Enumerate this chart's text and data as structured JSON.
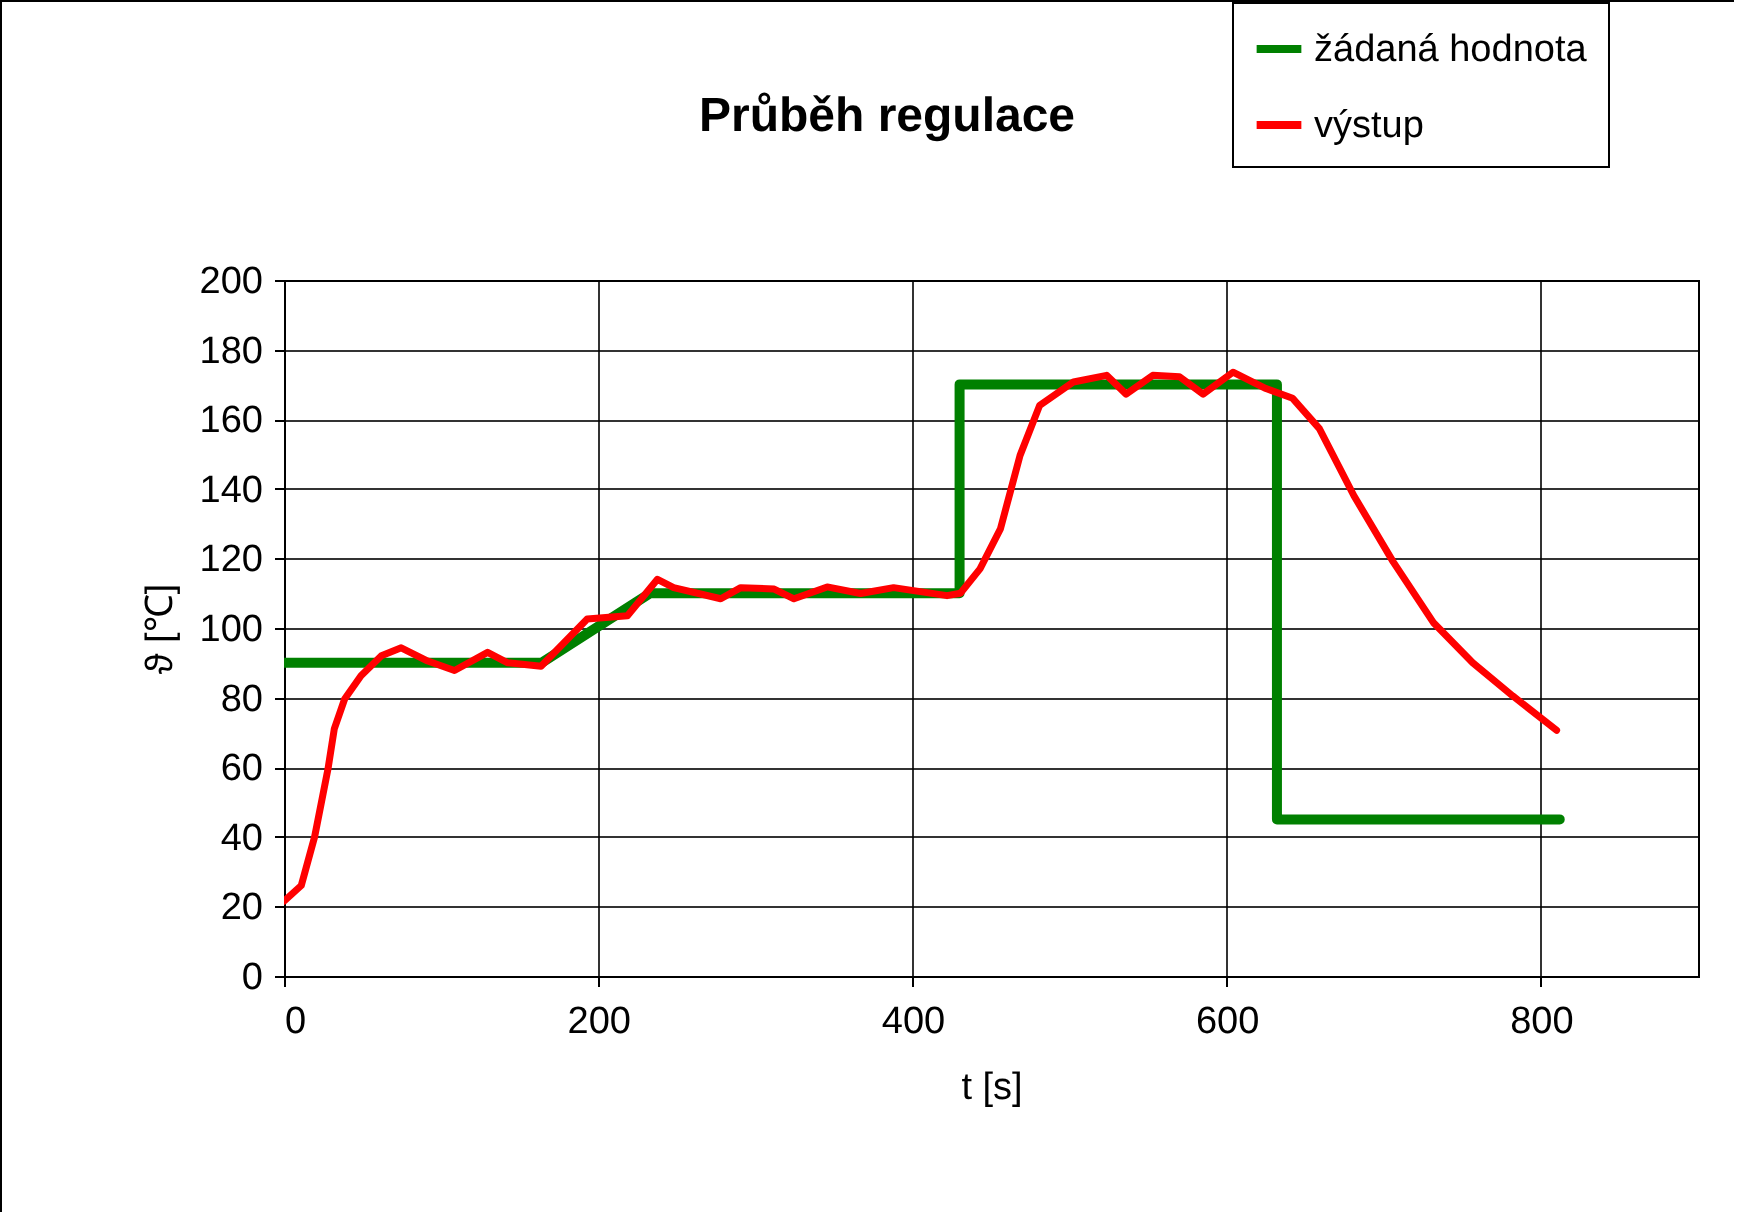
{
  "chart_data": {
    "type": "line",
    "title": "Průběh regulace",
    "xlabel": "t [s]",
    "ylabel": "ϑ [℃]",
    "xlim": [
      0,
      900
    ],
    "xticks": [
      0,
      200,
      400,
      600,
      800
    ],
    "ylim": [
      0,
      200
    ],
    "yticks": [
      0,
      20,
      40,
      60,
      80,
      100,
      120,
      140,
      160,
      180,
      200
    ],
    "grid": true,
    "legend": "top right",
    "series": [
      {
        "name": "žádaná hodnota",
        "color": "#008000",
        "x": [
          0,
          164,
          233,
          430,
          430,
          632,
          632,
          812
        ],
        "values": [
          90,
          90,
          110,
          110,
          170,
          170,
          45,
          45
        ]
      },
      {
        "name": "výstup",
        "color": "#ff0000",
        "x": [
          0,
          11,
          19.5,
          28,
          32,
          38.6,
          49,
          62,
          74.6,
          91.5,
          108.5,
          129.6,
          142.4,
          163.6,
          193,
          218.6,
          237.7,
          248,
          278,
          290.7,
          312,
          324.6,
          345.7,
          367,
          388,
          422,
          430.5,
          443,
          456,
          468.5,
          481,
          502.5,
          523.6,
          536,
          553,
          570,
          585,
          604,
          625,
          642,
          659,
          681,
          706,
          731.5,
          756.6,
          782,
          810
        ],
        "values": [
          21.5,
          26,
          40,
          59.5,
          71,
          79.6,
          86.3,
          92,
          94.3,
          90.5,
          87.8,
          93,
          90,
          89,
          102.6,
          103.5,
          114,
          111.6,
          108.4,
          111.6,
          111.2,
          108.4,
          111.8,
          109.9,
          111.6,
          109.3,
          110,
          117,
          128.5,
          149.6,
          164,
          170.7,
          172.6,
          167.2,
          172.6,
          172.2,
          167.2,
          173.5,
          168.8,
          166,
          157.3,
          138,
          119,
          101.6,
          90,
          80.5,
          70.6
        ]
      }
    ]
  }
}
